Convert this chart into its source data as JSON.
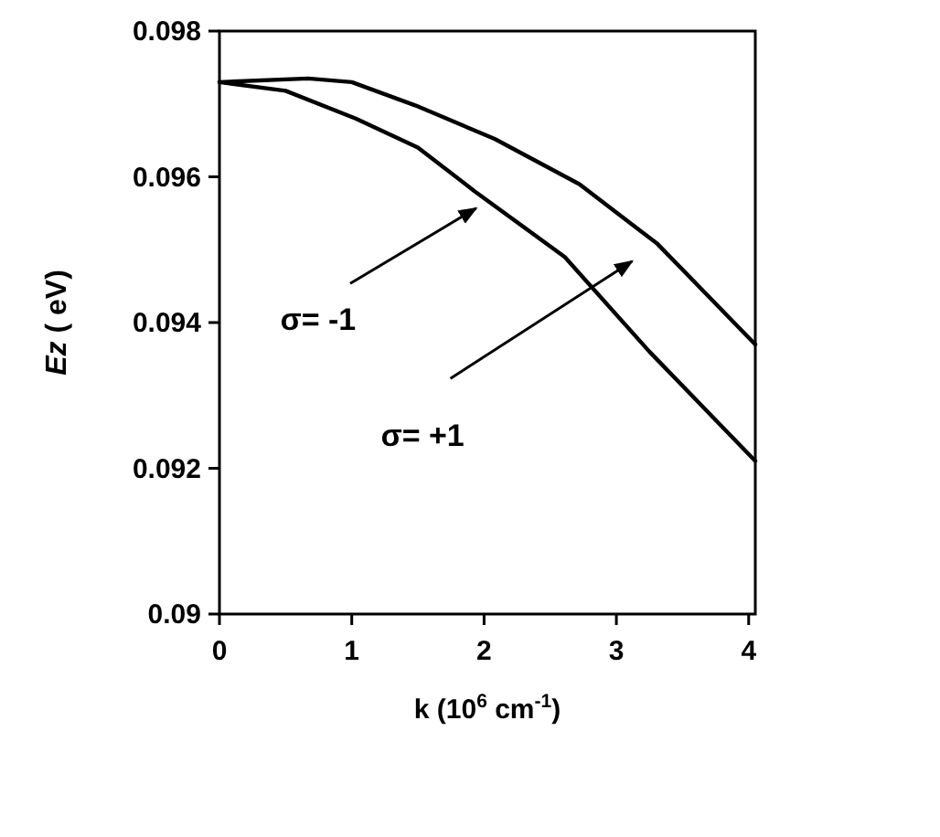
{
  "chart_data": {
    "type": "line",
    "xlabel": "k (10$^{6}$ cm$^{-1}$)",
    "ylabel": "Ez ( eV)",
    "xlim": [
      0,
      4.05
    ],
    "ylim": [
      0.09,
      0.098
    ],
    "xticks": [
      0,
      1,
      2,
      3,
      4
    ],
    "yticks": [
      0.09,
      0.092,
      0.094,
      0.096,
      0.098
    ],
    "grid": false,
    "marker": "none",
    "line_style": "solid",
    "series": [
      {
        "color": "#000000",
        "x": [
          0,
          0.5,
          1.03,
          1.5,
          1.93,
          2.61,
          3.25,
          4.05
        ],
        "values": [
          0.0973,
          0.09718,
          0.0968,
          0.0964,
          0.0958,
          0.0949,
          0.0936,
          0.0921
        ]
      },
      {
        "color": "#000000",
        "x": [
          0,
          0.67,
          1.0,
          1.48,
          2.08,
          2.72,
          3.31,
          4.05
        ],
        "values": [
          0.0973,
          0.09735,
          0.0973,
          0.09698,
          0.09652,
          0.0959,
          0.09508,
          0.0937
        ]
      }
    ],
    "annotations": [
      "σ= -1",
      "σ= +1"
    ]
  }
}
